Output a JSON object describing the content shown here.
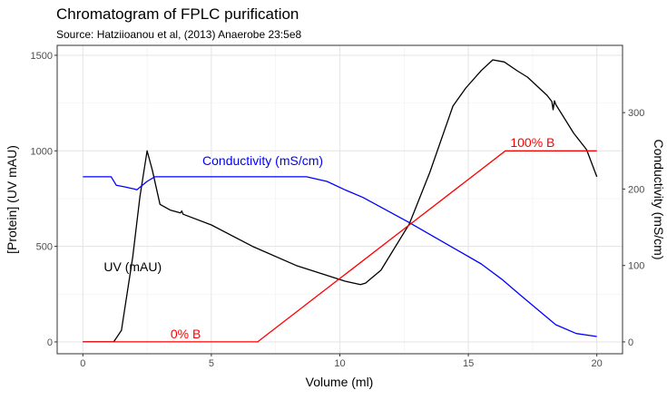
{
  "chart_data": {
    "type": "line",
    "title": "Chromatogram of FPLC purification",
    "subtitle": "Source: Hatziioanou et al, (2013) Anaerobe 23:5e8",
    "xlabel": "Volume (ml)",
    "ylabel": "[Protein] (UV mAU)",
    "y2label": "Conductivity (mS/cm)",
    "xlim": [
      -1,
      21
    ],
    "ylim": [
      -62,
      1552
    ],
    "y2lim": [
      -15.5,
      388
    ],
    "xticks": [
      0,
      5,
      10,
      15,
      20
    ],
    "yticks": [
      0,
      500,
      1000,
      1500
    ],
    "y2ticks": [
      0,
      100,
      200,
      300
    ],
    "grid": true,
    "series": [
      {
        "axis": "left",
        "color": "#000000",
        "x": [
          0,
          1.2,
          1.5,
          1.94,
          2.22,
          2.5,
          2.7,
          3.0,
          3.4,
          3.8,
          3.85,
          3.9,
          5.0,
          6.6,
          8.3,
          10.2,
          10.8,
          11.0,
          11.6,
          12.7,
          13.5,
          14.4,
          14.9,
          15.5,
          15.95,
          16.4,
          16.9,
          17.3,
          18.06,
          18.25,
          18.3,
          18.35,
          18.4,
          19.1,
          19.6,
          20
        ],
        "y": [
          0,
          0,
          60,
          446,
          760,
          1000,
          900,
          720,
          690,
          675,
          685,
          668,
          612,
          500,
          400,
          318,
          300,
          308,
          375,
          617,
          887,
          1234,
          1329,
          1420,
          1476,
          1465,
          1419,
          1386,
          1291,
          1258,
          1215,
          1262,
          1243,
          1092,
          1006,
          864
        ]
      },
      {
        "axis": "right",
        "color": "#0000FF",
        "x": [
          0,
          1.1,
          1.3,
          1.6,
          2.0,
          2.1,
          2.5,
          2.8,
          8.7,
          9.5,
          10.2,
          10.9,
          12.68,
          14.7,
          15.5,
          16.3,
          17.0,
          18.4,
          19.2,
          20
        ],
        "y": [
          216,
          216,
          205,
          203,
          200,
          199,
          210,
          216,
          216,
          210,
          199,
          189,
          156.5,
          117.5,
          102,
          82,
          62,
          22.5,
          11,
          7
        ]
      },
      {
        "axis": "left",
        "color": "#FF0000",
        "x": [
          0,
          6.8,
          16.44,
          20
        ],
        "y": [
          0,
          0,
          1000,
          1000
        ]
      }
    ],
    "annotations": [
      {
        "text": "UV (mAU)",
        "x": 1.94,
        "y": 394,
        "color": "#000000"
      },
      {
        "text": "Conductivity (mS/cm)",
        "x": 7.0,
        "y": 949,
        "color": "#0000FF"
      },
      {
        "text": "0% B",
        "x": 4.0,
        "y": 43,
        "color": "#FF0000"
      },
      {
        "text": "100% B",
        "x": 17.5,
        "y": 1044,
        "color": "#FF0000"
      }
    ]
  }
}
